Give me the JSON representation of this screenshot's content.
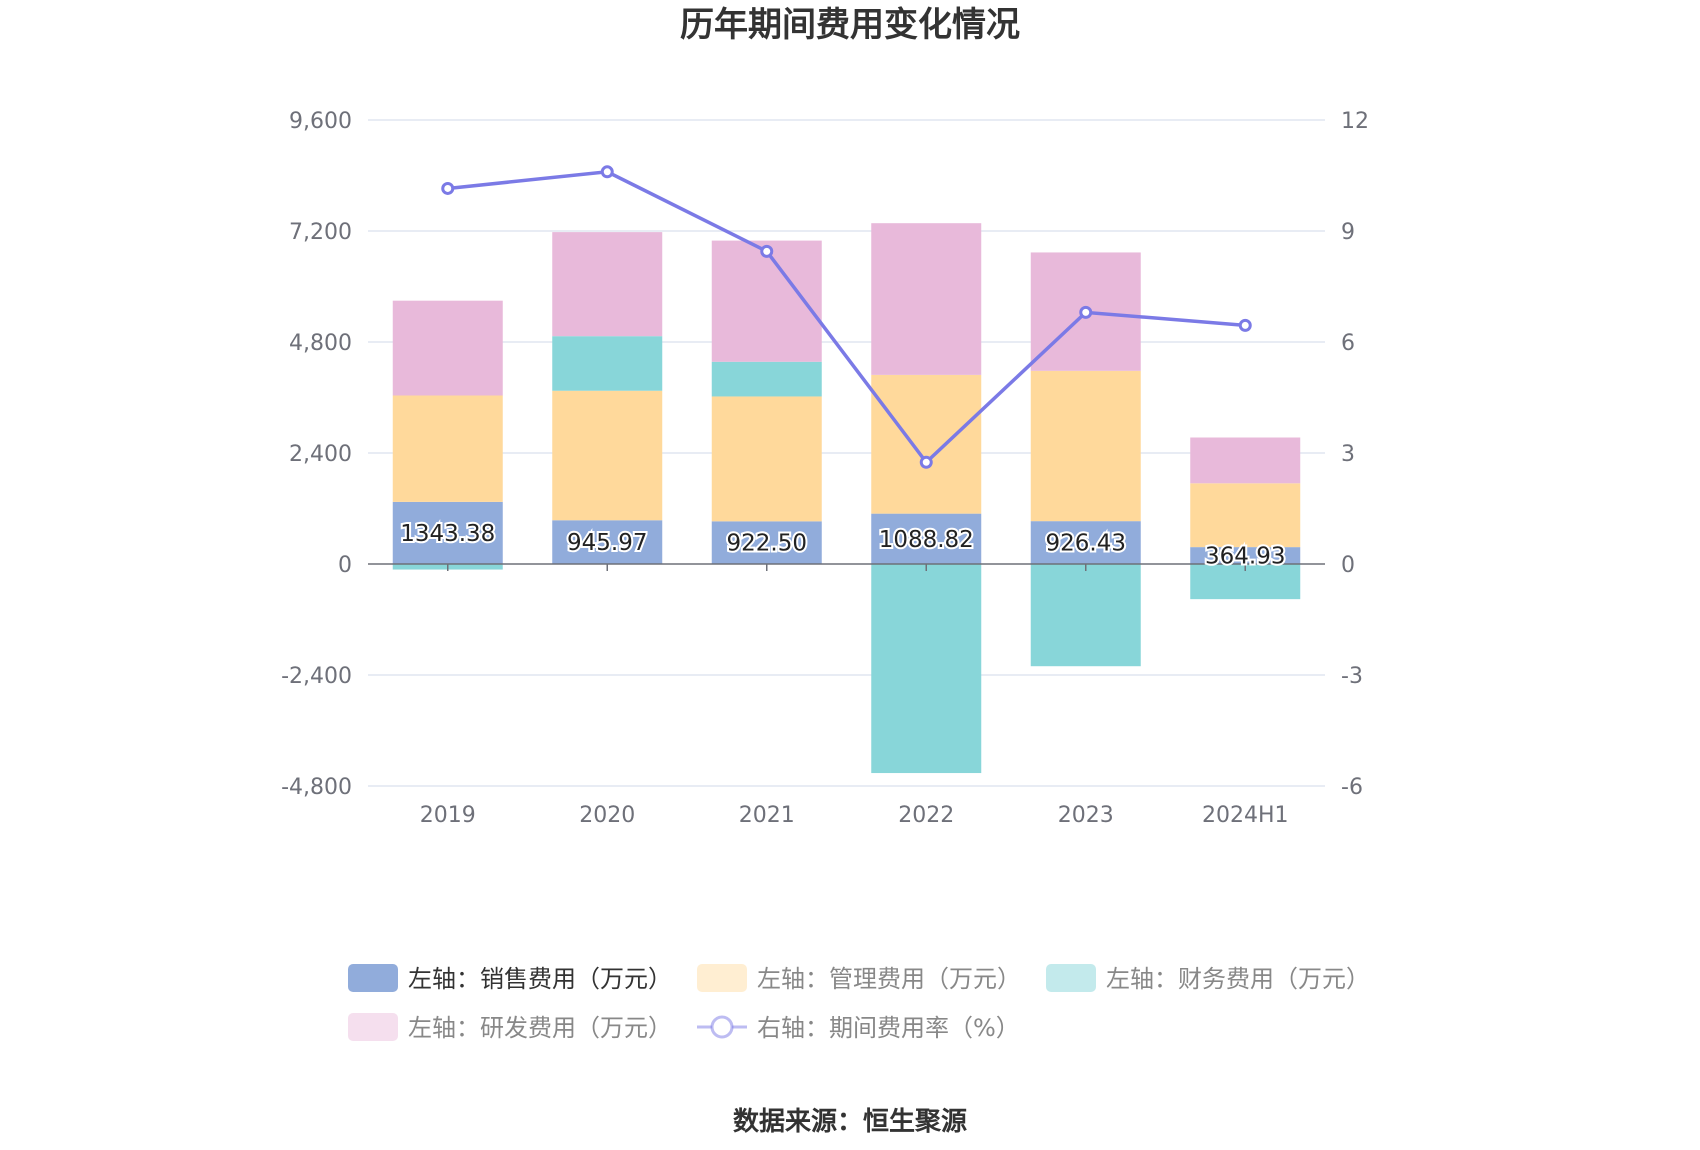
{
  "chart_data": {
    "type": "bar",
    "title": "历年期间费用变化情况",
    "categories": [
      "2019",
      "2020",
      "2021",
      "2022",
      "2023",
      "2024H1"
    ],
    "y_left": {
      "min": -4800,
      "max": 9600,
      "ticks": [
        -4800,
        -2400,
        0,
        2400,
        4800,
        7200,
        9600
      ],
      "tick_labels": [
        "-4,800",
        "-2,400",
        "0",
        "2,400",
        "4,800",
        "7,200",
        "9,600"
      ]
    },
    "y_right": {
      "min": -6,
      "max": 12,
      "ticks": [
        -6,
        -3,
        0,
        3,
        6,
        9,
        12
      ],
      "tick_labels": [
        "-6",
        "-3",
        "0",
        "3",
        "6",
        "9",
        "12"
      ]
    },
    "grid": true,
    "legend_position": "bottom",
    "series": [
      {
        "name": "左轴：销售费用（万元）",
        "kind": "bar",
        "axis": "left",
        "color": "#91acdb",
        "values": [
          1343.38,
          945.97,
          922.5,
          1088.82,
          926.43,
          364.93
        ],
        "labels": [
          "1343.38",
          "945.97",
          "922.50",
          "1088.82",
          "926.43",
          "364.93"
        ]
      },
      {
        "name": "左轴：管理费用（万元）",
        "kind": "bar",
        "axis": "left",
        "color": "#ffd99b",
        "values": [
          2300,
          2800,
          2700,
          3000,
          3250,
          1380
        ]
      },
      {
        "name": "左轴：财务费用（万元）",
        "kind": "bar",
        "axis": "left",
        "color": "#88d6d9",
        "values": [
          -120,
          1180,
          750,
          -4520,
          -2210,
          -760
        ]
      },
      {
        "name": "左轴：研发费用（万元）",
        "kind": "bar",
        "axis": "left",
        "color": "#e8b9da",
        "values": [
          2050,
          2250,
          2620,
          3280,
          2560,
          990
        ]
      },
      {
        "name": "右轴：期间费用率（%）",
        "kind": "line",
        "axis": "right",
        "color": "#7b7ae6",
        "values": [
          10.15,
          10.6,
          8.45,
          2.75,
          6.8,
          6.45
        ]
      }
    ]
  },
  "source_text": "数据来源：恒生聚源"
}
